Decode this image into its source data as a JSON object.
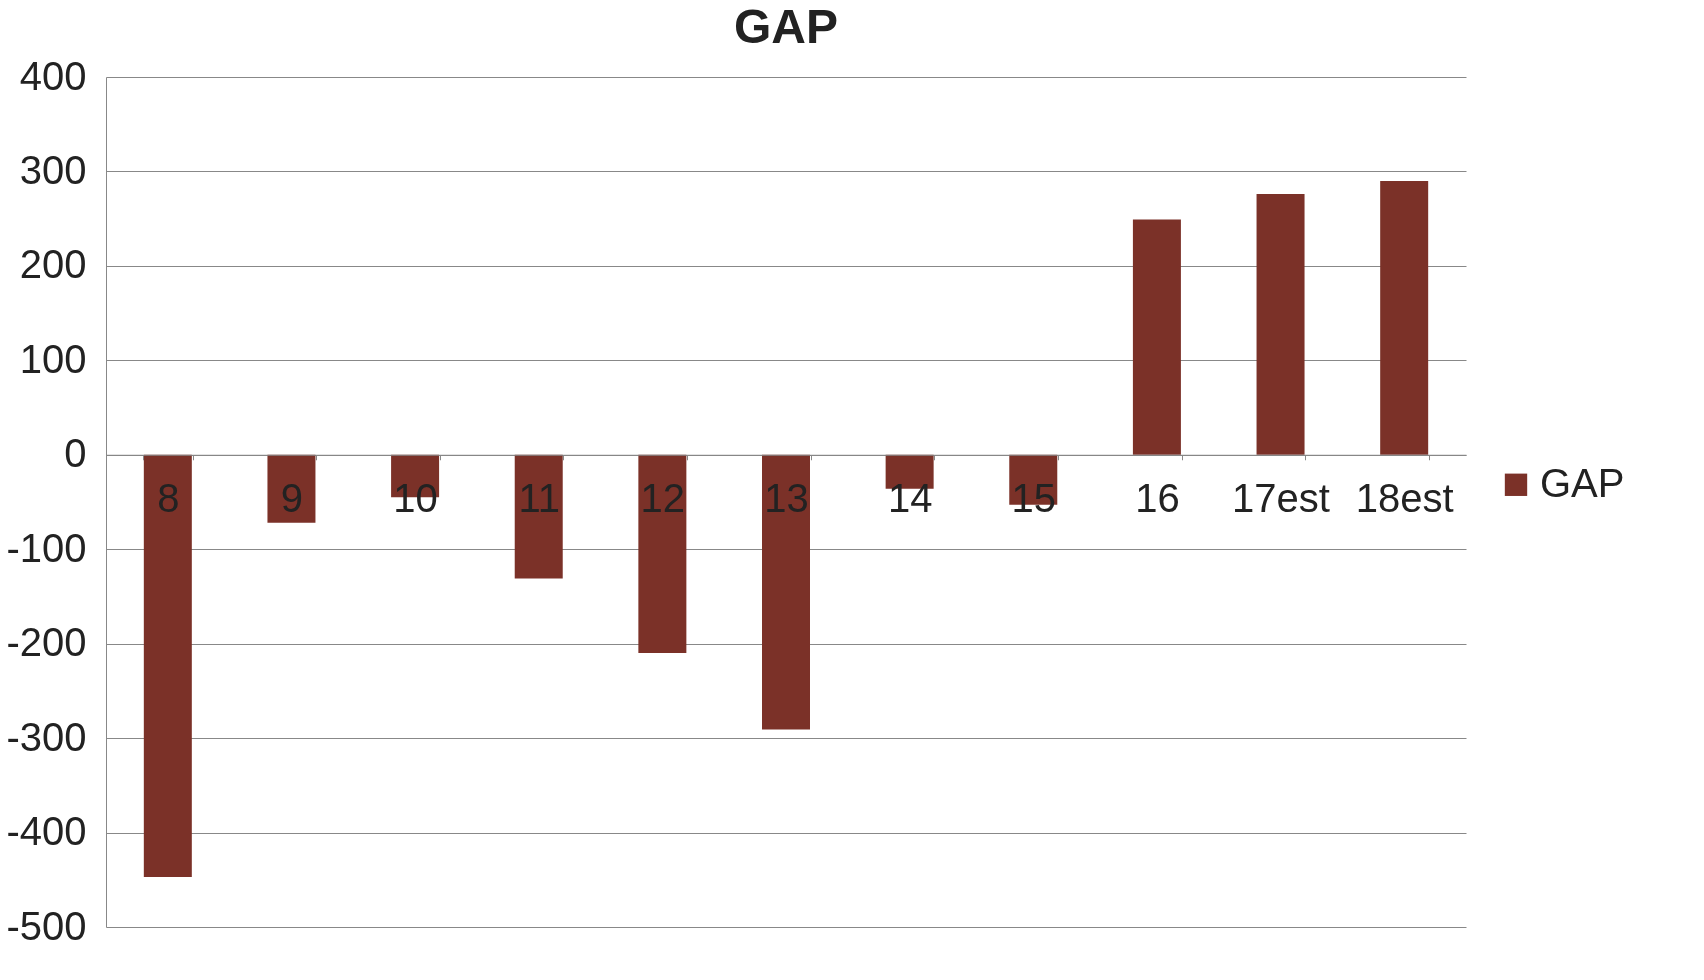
{
  "chart_data": {
    "type": "bar",
    "title": "GAP",
    "categories": [
      "8",
      "9",
      "10",
      "11",
      "12",
      "13",
      "14",
      "15",
      "16",
      "17est",
      "18est"
    ],
    "series": [
      {
        "name": "GAP",
        "color": "#7b3128",
        "values": [
          -447,
          -72,
          -45,
          -131,
          -210,
          -291,
          -36,
          -53,
          249,
          276,
          290
        ]
      }
    ],
    "ylim": [
      -500,
      400
    ],
    "yticks": [
      -500,
      -400,
      -300,
      -200,
      -100,
      0,
      100,
      200,
      300,
      400
    ],
    "grid": "y",
    "legend": "right"
  }
}
